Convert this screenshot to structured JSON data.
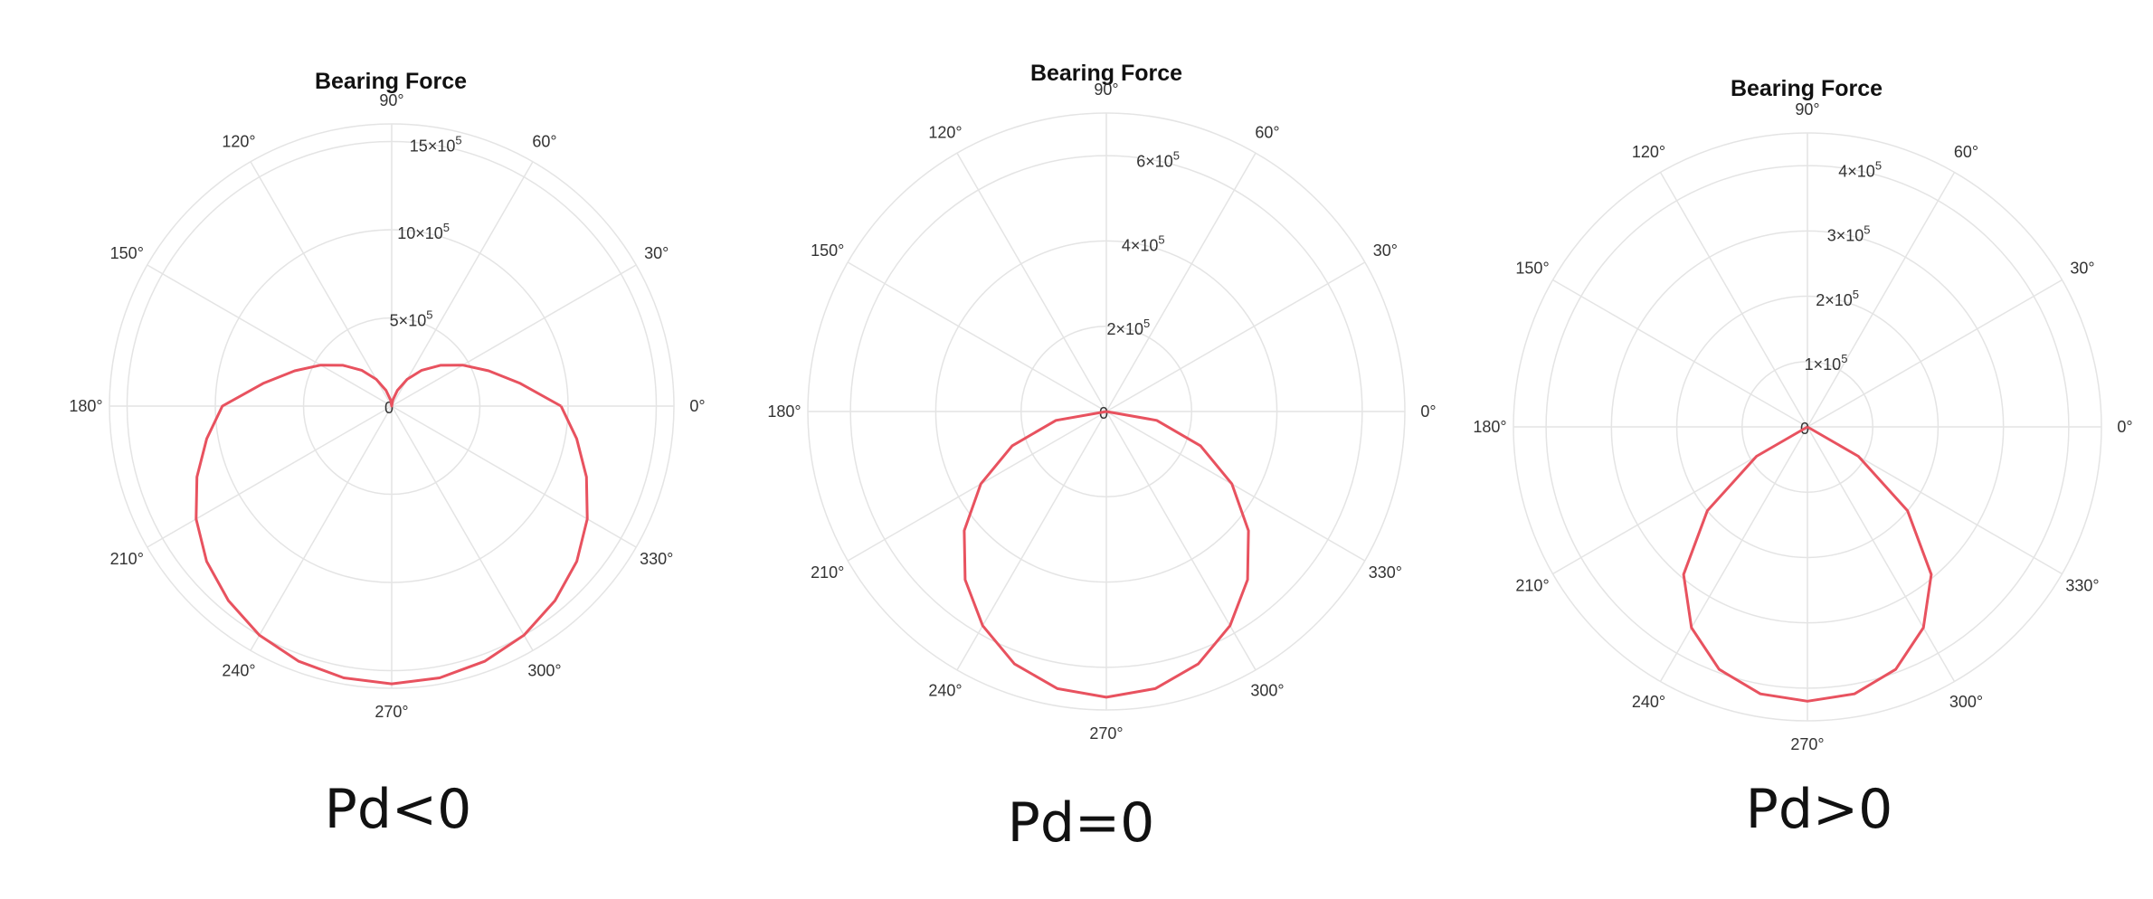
{
  "chart_data": [
    {
      "type": "polar-line",
      "title": "Bearing Force",
      "caption": "Pd<0",
      "theta_ticks": [
        "0°",
        "30°",
        "60°",
        "90°",
        "120°",
        "150°",
        "180°",
        "210°",
        "240°",
        "270°",
        "300°",
        "330°"
      ],
      "radial_ticks": [
        {
          "value": 0,
          "label": "0"
        },
        {
          "value": 500000,
          "label": "5×10",
          "exp": "5"
        },
        {
          "value": 1000000,
          "label": "10×10",
          "exp": "5"
        },
        {
          "value": 1500000,
          "label": "15×10",
          "exp": "5"
        }
      ],
      "r_max": 1600000,
      "line_color": "#e8525f",
      "series": [
        {
          "theta_deg": [
            0,
            10,
            20,
            30,
            40,
            50,
            60,
            70,
            80,
            90,
            100,
            110,
            120,
            130,
            140,
            150,
            160,
            170,
            180,
            190,
            200,
            210,
            220,
            230,
            240,
            250,
            260,
            270,
            280,
            290,
            300,
            310,
            320,
            330,
            340,
            350,
            360
          ],
          "r": [
            960000,
            740000,
            585000,
            465000,
            360000,
            265000,
            175000,
            95000,
            35000,
            0,
            35000,
            95000,
            175000,
            265000,
            360000,
            465000,
            585000,
            740000,
            960000,
            1065000,
            1175000,
            1280000,
            1370000,
            1440000,
            1500000,
            1540000,
            1565000,
            1575000,
            1565000,
            1540000,
            1500000,
            1440000,
            1370000,
            1280000,
            1175000,
            1065000,
            960000
          ]
        }
      ]
    },
    {
      "type": "polar-line",
      "title": "Bearing Force",
      "caption": "Pd=0",
      "theta_ticks": [
        "0°",
        "30°",
        "60°",
        "90°",
        "120°",
        "150°",
        "180°",
        "210°",
        "240°",
        "270°",
        "300°",
        "330°"
      ],
      "radial_ticks": [
        {
          "value": 0,
          "label": "0"
        },
        {
          "value": 200000,
          "label": "2×10",
          "exp": "5"
        },
        {
          "value": 400000,
          "label": "4×10",
          "exp": "5"
        },
        {
          "value": 600000,
          "label": "6×10",
          "exp": "5"
        }
      ],
      "r_max": 700000,
      "line_color": "#e8525f",
      "series": [
        {
          "theta_deg": [
            180,
            190,
            200,
            210,
            220,
            230,
            240,
            250,
            260,
            270,
            280,
            290,
            300,
            310,
            320,
            330,
            340,
            350,
            360
          ],
          "r": [
            0,
            120000,
            235000,
            340000,
            435000,
            515000,
            580000,
            630000,
            660000,
            670000,
            660000,
            630000,
            580000,
            515000,
            435000,
            340000,
            235000,
            120000,
            0
          ]
        }
      ]
    },
    {
      "type": "polar-line",
      "title": "Bearing Force",
      "caption": "Pd>0",
      "theta_ticks": [
        "0°",
        "30°",
        "60°",
        "90°",
        "120°",
        "150°",
        "180°",
        "210°",
        "240°",
        "270°",
        "300°",
        "330°"
      ],
      "radial_ticks": [
        {
          "value": 0,
          "label": "0"
        },
        {
          "value": 100000,
          "label": "1×10",
          "exp": "5"
        },
        {
          "value": 200000,
          "label": "2×10",
          "exp": "5"
        },
        {
          "value": 300000,
          "label": "3×10",
          "exp": "5"
        },
        {
          "value": 400000,
          "label": "4×10",
          "exp": "5"
        }
      ],
      "r_max": 450000,
      "line_color": "#e8525f",
      "series": [
        {
          "theta_deg": [
            200,
            210,
            220,
            230,
            240,
            250,
            260,
            270,
            280,
            290,
            300,
            310,
            320,
            330,
            340
          ],
          "r": [
            0,
            90000,
            200000,
            295000,
            355000,
            395000,
            415000,
            420000,
            415000,
            395000,
            355000,
            295000,
            200000,
            90000,
            0
          ]
        }
      ]
    }
  ]
}
